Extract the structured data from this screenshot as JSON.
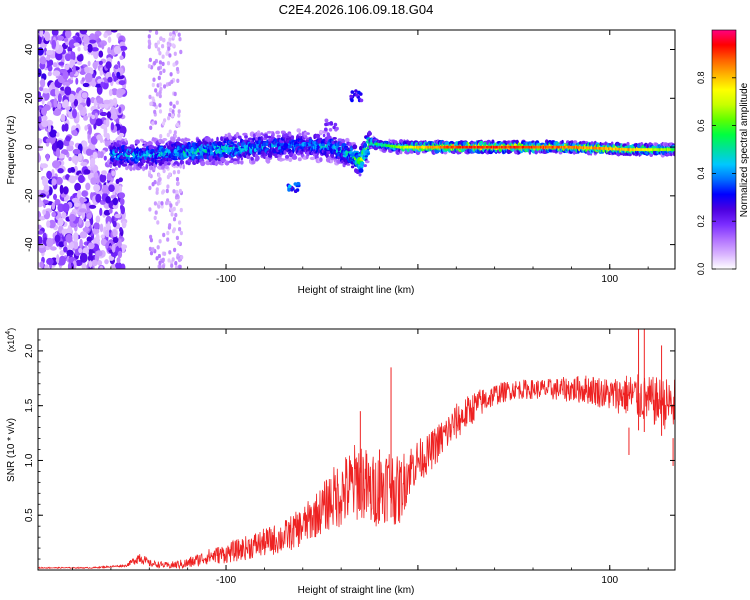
{
  "figure": {
    "title": "C2E4.2026.106.09.18.G04"
  },
  "chart_data": [
    {
      "type": "heatmap",
      "name": "spectrogram",
      "xlabel": "Height of straight line (km)",
      "ylabel": "Frequency (Hz)",
      "xlim": [
        -198,
        134
      ],
      "ylim": [
        -50,
        48
      ],
      "xticks": [
        -100,
        0,
        100
      ],
      "xticklabels": [
        "-100",
        "",
        "100"
      ],
      "yticks": [
        -40,
        -20,
        0,
        20,
        40
      ],
      "yticklabels": [
        "-40",
        "-20",
        "0",
        "20",
        "40"
      ],
      "colorbar": {
        "label": "Normalized spectral amplitude",
        "range": [
          0,
          1
        ],
        "ticks": [
          0.0,
          0.2,
          0.4,
          0.6,
          0.8
        ],
        "ticklabels": [
          "0.0",
          "0.2",
          "0.4",
          "0.6",
          "0.8"
        ],
        "colors": [
          "#ffffff",
          "#d9b3ff",
          "#b070ff",
          "#7a2cff",
          "#4b00e0",
          "#0000ff",
          "#0070ff",
          "#00c8ff",
          "#00e0a0",
          "#00ff40",
          "#60ff00",
          "#c8ff00",
          "#ffff00",
          "#ffb400",
          "#ff6000",
          "#ff0000",
          "#ff0080"
        ]
      },
      "ridge": {
        "description_free": true,
        "x": [
          -155,
          -140,
          -120,
          -100,
          -80,
          -60,
          -45,
          -35,
          -30,
          -25,
          -20,
          -10,
          0,
          20,
          50,
          80,
          110,
          134
        ],
        "y": [
          -3,
          -3,
          -2,
          -1,
          0,
          1,
          0,
          -3,
          -6,
          2,
          1,
          0,
          0,
          0,
          0,
          0,
          -1,
          -1
        ],
        "peak_amplitude": [
          0.45,
          0.45,
          0.5,
          0.5,
          0.45,
          0.4,
          0.45,
          0.5,
          0.7,
          0.6,
          0.5,
          0.65,
          0.8,
          0.9,
          0.9,
          0.85,
          0.8,
          0.6
        ]
      },
      "features": [
        {
          "x": -32,
          "y": 21,
          "amplitude": 0.3
        },
        {
          "x": -65,
          "y": -17,
          "amplitude": 0.4
        },
        {
          "x": -45,
          "y": 9,
          "amplitude": 0.2
        }
      ]
    },
    {
      "type": "line",
      "name": "snr",
      "xlabel": "Height of straight line (km)",
      "ylabel": "SNR (10 * v/v)",
      "yscale_label": "(x10^4)",
      "xlim": [
        -198,
        134
      ],
      "ylim": [
        0,
        2.2
      ],
      "xticks": [
        -100,
        0,
        100
      ],
      "xticklabels": [
        "-100",
        "",
        "100"
      ],
      "yticks": [
        0.5,
        1.0,
        1.5,
        2.0
      ],
      "yticklabels": [
        "0.5",
        "1.0",
        "1.5",
        "2.0"
      ],
      "color": "#ee2222",
      "series": [
        {
          "name": "SNR",
          "x": [
            -198,
            -170,
            -152,
            -145,
            -140,
            -130,
            -120,
            -110,
            -100,
            -90,
            -80,
            -70,
            -60,
            -50,
            -45,
            -40,
            -35,
            -30,
            -25,
            -20,
            -15,
            -10,
            -5,
            0,
            5,
            10,
            20,
            30,
            40,
            50,
            60,
            70,
            80,
            90,
            100,
            110,
            120,
            134
          ],
          "y": [
            0.02,
            0.02,
            0.04,
            0.12,
            0.06,
            0.04,
            0.06,
            0.12,
            0.15,
            0.2,
            0.25,
            0.3,
            0.4,
            0.55,
            0.65,
            0.7,
            0.75,
            0.85,
            0.7,
            0.75,
            0.8,
            0.7,
            0.9,
            1.0,
            1.05,
            1.15,
            1.35,
            1.5,
            1.6,
            1.65,
            1.65,
            1.65,
            1.65,
            1.65,
            1.6,
            1.6,
            1.55,
            1.5
          ],
          "noise": [
            0.005,
            0.005,
            0.01,
            0.06,
            0.03,
            0.03,
            0.05,
            0.07,
            0.09,
            0.11,
            0.13,
            0.15,
            0.18,
            0.22,
            0.28,
            0.32,
            0.36,
            0.38,
            0.34,
            0.34,
            0.35,
            0.32,
            0.25,
            0.2,
            0.18,
            0.18,
            0.17,
            0.14,
            0.1,
            0.09,
            0.09,
            0.1,
            0.12,
            0.14,
            0.15,
            0.2,
            0.22,
            0.25
          ]
        }
      ],
      "spikes": [
        {
          "x": -30,
          "y": 1.45
        },
        {
          "x": -14,
          "y": 1.85
        },
        {
          "x": -20,
          "y": 1.1
        },
        {
          "x": 115,
          "y": 2.2
        },
        {
          "x": 118,
          "y": 2.2
        },
        {
          "x": 127,
          "y": 2.05
        },
        {
          "x": 110,
          "y": 1.05
        },
        {
          "x": 133,
          "y": 0.95
        }
      ]
    }
  ]
}
